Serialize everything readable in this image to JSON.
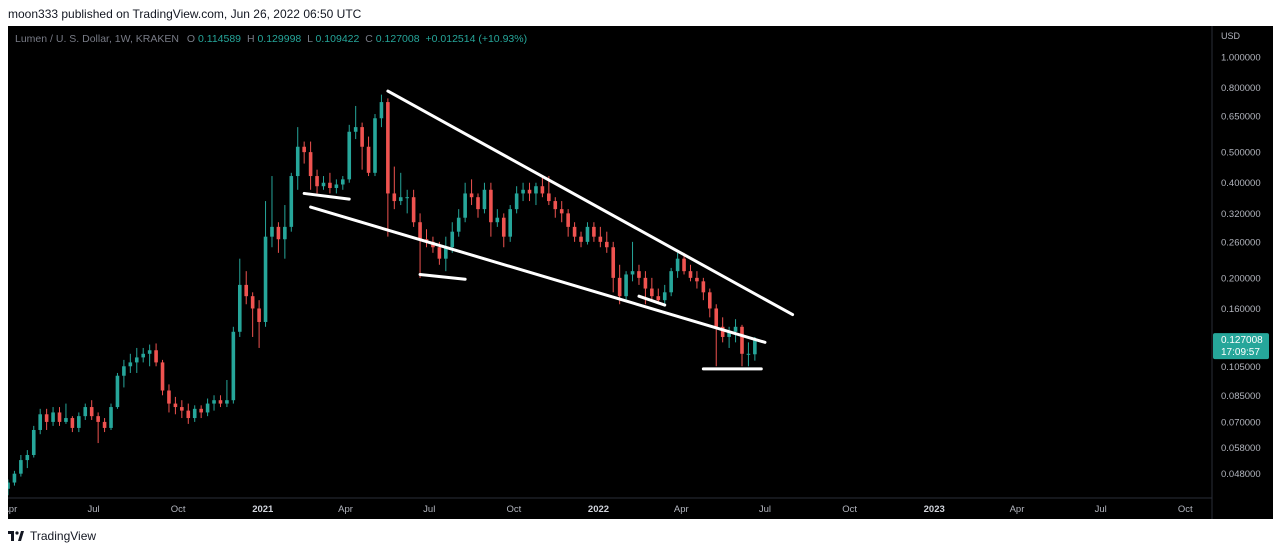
{
  "header": {
    "publisher": "moon333 published on TradingView.com, Jun 26, 2022 06:50 UTC"
  },
  "legend": {
    "symbol": "Lumen / U. S. Dollar, 1W, KRAKEN",
    "o_label": "O",
    "o_value": "0.114589",
    "h_label": "H",
    "h_value": "0.129998",
    "l_label": "L",
    "l_value": "0.109422",
    "c_label": "C",
    "c_value": "0.127008",
    "change": "+0.012514 (+10.93%)"
  },
  "price_axis": {
    "currency": "USD",
    "ticks": [
      "1.000000",
      "0.800000",
      "0.650000",
      "0.500000",
      "0.400000",
      "0.320000",
      "0.260000",
      "0.200000",
      "0.160000",
      "0.105000",
      "0.085000",
      "0.070000",
      "0.058000",
      "0.048000"
    ],
    "last_price": "0.127008",
    "countdown": "17:09:57"
  },
  "time_axis": {
    "ticks": [
      "Apr",
      "Jul",
      "Oct",
      "2021",
      "Apr",
      "Jul",
      "Oct",
      "2022",
      "Apr",
      "Jul",
      "Oct",
      "2023",
      "Apr",
      "Jul",
      "Oct"
    ]
  },
  "footer": {
    "brand": "TradingView"
  },
  "colors": {
    "up": "#26a69a",
    "down": "#ef5350",
    "background": "#000000",
    "trendline": "#ffffff",
    "price_badge": "#26a69a"
  },
  "chart_data": {
    "type": "candlestick",
    "symbol": "XLM/USD",
    "interval": "1W",
    "exchange": "KRAKEN",
    "y_scale": "log",
    "ylim": [
      0.042,
      1.2
    ],
    "xlim": [
      "2020-03-30",
      "2023-10-30"
    ],
    "grid": false,
    "candles": [
      {
        "d": "2020-03-30",
        "o": 0.043,
        "h": 0.046,
        "l": 0.041,
        "c": 0.045
      },
      {
        "d": "2020-04-06",
        "o": 0.045,
        "h": 0.049,
        "l": 0.044,
        "c": 0.048
      },
      {
        "d": "2020-04-13",
        "o": 0.048,
        "h": 0.055,
        "l": 0.047,
        "c": 0.053
      },
      {
        "d": "2020-04-20",
        "o": 0.053,
        "h": 0.057,
        "l": 0.05,
        "c": 0.055
      },
      {
        "d": "2020-04-27",
        "o": 0.055,
        "h": 0.068,
        "l": 0.054,
        "c": 0.066
      },
      {
        "d": "2020-05-04",
        "o": 0.066,
        "h": 0.077,
        "l": 0.064,
        "c": 0.074
      },
      {
        "d": "2020-05-11",
        "o": 0.074,
        "h": 0.077,
        "l": 0.066,
        "c": 0.07
      },
      {
        "d": "2020-05-18",
        "o": 0.07,
        "h": 0.078,
        "l": 0.068,
        "c": 0.075
      },
      {
        "d": "2020-05-25",
        "o": 0.075,
        "h": 0.078,
        "l": 0.068,
        "c": 0.07
      },
      {
        "d": "2020-06-01",
        "o": 0.07,
        "h": 0.08,
        "l": 0.069,
        "c": 0.072
      },
      {
        "d": "2020-06-08",
        "o": 0.072,
        "h": 0.073,
        "l": 0.065,
        "c": 0.067
      },
      {
        "d": "2020-06-15",
        "o": 0.067,
        "h": 0.075,
        "l": 0.065,
        "c": 0.073
      },
      {
        "d": "2020-06-22",
        "o": 0.073,
        "h": 0.08,
        "l": 0.071,
        "c": 0.078
      },
      {
        "d": "2020-06-29",
        "o": 0.078,
        "h": 0.082,
        "l": 0.071,
        "c": 0.073
      },
      {
        "d": "2020-07-06",
        "o": 0.073,
        "h": 0.075,
        "l": 0.06,
        "c": 0.07
      },
      {
        "d": "2020-07-13",
        "o": 0.07,
        "h": 0.072,
        "l": 0.065,
        "c": 0.067
      },
      {
        "d": "2020-07-20",
        "o": 0.067,
        "h": 0.08,
        "l": 0.066,
        "c": 0.078
      },
      {
        "d": "2020-07-27",
        "o": 0.078,
        "h": 0.1,
        "l": 0.077,
        "c": 0.098
      },
      {
        "d": "2020-08-03",
        "o": 0.098,
        "h": 0.11,
        "l": 0.09,
        "c": 0.105
      },
      {
        "d": "2020-08-10",
        "o": 0.105,
        "h": 0.115,
        "l": 0.1,
        "c": 0.108
      },
      {
        "d": "2020-08-17",
        "o": 0.108,
        "h": 0.12,
        "l": 0.1,
        "c": 0.112
      },
      {
        "d": "2020-08-24",
        "o": 0.112,
        "h": 0.12,
        "l": 0.108,
        "c": 0.115
      },
      {
        "d": "2020-08-31",
        "o": 0.115,
        "h": 0.123,
        "l": 0.105,
        "c": 0.118
      },
      {
        "d": "2020-09-07",
        "o": 0.118,
        "h": 0.124,
        "l": 0.105,
        "c": 0.108
      },
      {
        "d": "2020-09-14",
        "o": 0.108,
        "h": 0.11,
        "l": 0.085,
        "c": 0.088
      },
      {
        "d": "2020-09-21",
        "o": 0.088,
        "h": 0.092,
        "l": 0.075,
        "c": 0.08
      },
      {
        "d": "2020-09-28",
        "o": 0.08,
        "h": 0.084,
        "l": 0.074,
        "c": 0.078
      },
      {
        "d": "2020-10-05",
        "o": 0.078,
        "h": 0.082,
        "l": 0.072,
        "c": 0.076
      },
      {
        "d": "2020-10-12",
        "o": 0.076,
        "h": 0.08,
        "l": 0.069,
        "c": 0.072
      },
      {
        "d": "2020-10-19",
        "o": 0.072,
        "h": 0.079,
        "l": 0.07,
        "c": 0.077
      },
      {
        "d": "2020-10-26",
        "o": 0.077,
        "h": 0.079,
        "l": 0.072,
        "c": 0.075
      },
      {
        "d": "2020-11-02",
        "o": 0.075,
        "h": 0.083,
        "l": 0.073,
        "c": 0.08
      },
      {
        "d": "2020-11-09",
        "o": 0.08,
        "h": 0.085,
        "l": 0.076,
        "c": 0.082
      },
      {
        "d": "2020-11-16",
        "o": 0.082,
        "h": 0.085,
        "l": 0.078,
        "c": 0.08
      },
      {
        "d": "2020-11-23",
        "o": 0.08,
        "h": 0.095,
        "l": 0.078,
        "c": 0.082
      },
      {
        "d": "2020-11-30",
        "o": 0.082,
        "h": 0.14,
        "l": 0.08,
        "c": 0.135
      },
      {
        "d": "2020-12-07",
        "o": 0.135,
        "h": 0.23,
        "l": 0.13,
        "c": 0.19
      },
      {
        "d": "2020-12-14",
        "o": 0.19,
        "h": 0.21,
        "l": 0.165,
        "c": 0.175
      },
      {
        "d": "2020-12-21",
        "o": 0.175,
        "h": 0.18,
        "l": 0.13,
        "c": 0.16
      },
      {
        "d": "2020-12-28",
        "o": 0.16,
        "h": 0.17,
        "l": 0.12,
        "c": 0.145
      },
      {
        "d": "2021-01-04",
        "o": 0.145,
        "h": 0.35,
        "l": 0.14,
        "c": 0.27
      },
      {
        "d": "2021-01-11",
        "o": 0.27,
        "h": 0.42,
        "l": 0.25,
        "c": 0.29
      },
      {
        "d": "2021-01-18",
        "o": 0.29,
        "h": 0.3,
        "l": 0.24,
        "c": 0.265
      },
      {
        "d": "2021-01-25",
        "o": 0.265,
        "h": 0.34,
        "l": 0.23,
        "c": 0.29
      },
      {
        "d": "2021-02-01",
        "o": 0.29,
        "h": 0.43,
        "l": 0.28,
        "c": 0.42
      },
      {
        "d": "2021-02-08",
        "o": 0.42,
        "h": 0.6,
        "l": 0.38,
        "c": 0.52
      },
      {
        "d": "2021-02-15",
        "o": 0.52,
        "h": 0.54,
        "l": 0.46,
        "c": 0.5
      },
      {
        "d": "2021-02-22",
        "o": 0.5,
        "h": 0.54,
        "l": 0.38,
        "c": 0.42
      },
      {
        "d": "2021-03-01",
        "o": 0.42,
        "h": 0.44,
        "l": 0.37,
        "c": 0.39
      },
      {
        "d": "2021-03-08",
        "o": 0.39,
        "h": 0.42,
        "l": 0.38,
        "c": 0.4
      },
      {
        "d": "2021-03-15",
        "o": 0.4,
        "h": 0.43,
        "l": 0.37,
        "c": 0.385
      },
      {
        "d": "2021-03-22",
        "o": 0.385,
        "h": 0.41,
        "l": 0.37,
        "c": 0.395
      },
      {
        "d": "2021-03-29",
        "o": 0.395,
        "h": 0.42,
        "l": 0.38,
        "c": 0.41
      },
      {
        "d": "2021-04-05",
        "o": 0.41,
        "h": 0.61,
        "l": 0.4,
        "c": 0.58
      },
      {
        "d": "2021-04-12",
        "o": 0.58,
        "h": 0.7,
        "l": 0.55,
        "c": 0.6
      },
      {
        "d": "2021-04-19",
        "o": 0.6,
        "h": 0.62,
        "l": 0.44,
        "c": 0.52
      },
      {
        "d": "2021-04-26",
        "o": 0.52,
        "h": 0.56,
        "l": 0.42,
        "c": 0.43
      },
      {
        "d": "2021-05-03",
        "o": 0.43,
        "h": 0.66,
        "l": 0.42,
        "c": 0.64
      },
      {
        "d": "2021-05-10",
        "o": 0.64,
        "h": 0.76,
        "l": 0.6,
        "c": 0.72
      },
      {
        "d": "2021-05-17",
        "o": 0.72,
        "h": 0.74,
        "l": 0.27,
        "c": 0.37
      },
      {
        "d": "2021-05-24",
        "o": 0.37,
        "h": 0.45,
        "l": 0.33,
        "c": 0.35
      },
      {
        "d": "2021-05-31",
        "o": 0.35,
        "h": 0.43,
        "l": 0.34,
        "c": 0.36
      },
      {
        "d": "2021-06-07",
        "o": 0.36,
        "h": 0.38,
        "l": 0.32,
        "c": 0.36
      },
      {
        "d": "2021-06-14",
        "o": 0.36,
        "h": 0.38,
        "l": 0.29,
        "c": 0.3
      },
      {
        "d": "2021-06-21",
        "o": 0.3,
        "h": 0.32,
        "l": 0.2,
        "c": 0.265
      },
      {
        "d": "2021-06-28",
        "o": 0.265,
        "h": 0.285,
        "l": 0.25,
        "c": 0.26
      },
      {
        "d": "2021-07-05",
        "o": 0.26,
        "h": 0.27,
        "l": 0.24,
        "c": 0.25
      },
      {
        "d": "2021-07-12",
        "o": 0.25,
        "h": 0.26,
        "l": 0.22,
        "c": 0.23
      },
      {
        "d": "2021-07-19",
        "o": 0.23,
        "h": 0.27,
        "l": 0.21,
        "c": 0.25
      },
      {
        "d": "2021-07-26",
        "o": 0.25,
        "h": 0.3,
        "l": 0.24,
        "c": 0.28
      },
      {
        "d": "2021-08-02",
        "o": 0.28,
        "h": 0.33,
        "l": 0.27,
        "c": 0.31
      },
      {
        "d": "2021-08-09",
        "o": 0.31,
        "h": 0.4,
        "l": 0.3,
        "c": 0.37
      },
      {
        "d": "2021-08-16",
        "o": 0.37,
        "h": 0.41,
        "l": 0.34,
        "c": 0.36
      },
      {
        "d": "2021-08-23",
        "o": 0.36,
        "h": 0.37,
        "l": 0.31,
        "c": 0.33
      },
      {
        "d": "2021-08-30",
        "o": 0.33,
        "h": 0.4,
        "l": 0.32,
        "c": 0.38
      },
      {
        "d": "2021-09-06",
        "o": 0.38,
        "h": 0.4,
        "l": 0.27,
        "c": 0.3
      },
      {
        "d": "2021-09-13",
        "o": 0.3,
        "h": 0.33,
        "l": 0.29,
        "c": 0.31
      },
      {
        "d": "2021-09-20",
        "o": 0.31,
        "h": 0.32,
        "l": 0.25,
        "c": 0.27
      },
      {
        "d": "2021-09-27",
        "o": 0.27,
        "h": 0.34,
        "l": 0.26,
        "c": 0.33
      },
      {
        "d": "2021-10-04",
        "o": 0.33,
        "h": 0.39,
        "l": 0.32,
        "c": 0.37
      },
      {
        "d": "2021-10-11",
        "o": 0.37,
        "h": 0.4,
        "l": 0.35,
        "c": 0.38
      },
      {
        "d": "2021-10-18",
        "o": 0.38,
        "h": 0.4,
        "l": 0.35,
        "c": 0.37
      },
      {
        "d": "2021-10-25",
        "o": 0.37,
        "h": 0.4,
        "l": 0.34,
        "c": 0.39
      },
      {
        "d": "2021-11-01",
        "o": 0.39,
        "h": 0.42,
        "l": 0.36,
        "c": 0.37
      },
      {
        "d": "2021-11-08",
        "o": 0.37,
        "h": 0.42,
        "l": 0.34,
        "c": 0.35
      },
      {
        "d": "2021-11-15",
        "o": 0.35,
        "h": 0.36,
        "l": 0.31,
        "c": 0.33
      },
      {
        "d": "2021-11-22",
        "o": 0.33,
        "h": 0.35,
        "l": 0.3,
        "c": 0.32
      },
      {
        "d": "2021-11-29",
        "o": 0.32,
        "h": 0.33,
        "l": 0.27,
        "c": 0.29
      },
      {
        "d": "2021-12-06",
        "o": 0.29,
        "h": 0.3,
        "l": 0.26,
        "c": 0.27
      },
      {
        "d": "2021-12-13",
        "o": 0.27,
        "h": 0.28,
        "l": 0.25,
        "c": 0.26
      },
      {
        "d": "2021-12-20",
        "o": 0.26,
        "h": 0.3,
        "l": 0.255,
        "c": 0.29
      },
      {
        "d": "2021-12-27",
        "o": 0.29,
        "h": 0.3,
        "l": 0.26,
        "c": 0.27
      },
      {
        "d": "2022-01-03",
        "o": 0.27,
        "h": 0.29,
        "l": 0.25,
        "c": 0.26
      },
      {
        "d": "2022-01-10",
        "o": 0.26,
        "h": 0.28,
        "l": 0.24,
        "c": 0.25
      },
      {
        "d": "2022-01-17",
        "o": 0.25,
        "h": 0.26,
        "l": 0.18,
        "c": 0.2
      },
      {
        "d": "2022-01-24",
        "o": 0.2,
        "h": 0.22,
        "l": 0.165,
        "c": 0.175
      },
      {
        "d": "2022-01-31",
        "o": 0.175,
        "h": 0.21,
        "l": 0.17,
        "c": 0.205
      },
      {
        "d": "2022-02-07",
        "o": 0.205,
        "h": 0.26,
        "l": 0.195,
        "c": 0.21
      },
      {
        "d": "2022-02-14",
        "o": 0.21,
        "h": 0.22,
        "l": 0.19,
        "c": 0.2
      },
      {
        "d": "2022-02-21",
        "o": 0.2,
        "h": 0.21,
        "l": 0.165,
        "c": 0.185
      },
      {
        "d": "2022-02-28",
        "o": 0.185,
        "h": 0.2,
        "l": 0.17,
        "c": 0.175
      },
      {
        "d": "2022-03-07",
        "o": 0.175,
        "h": 0.185,
        "l": 0.165,
        "c": 0.17
      },
      {
        "d": "2022-03-14",
        "o": 0.17,
        "h": 0.19,
        "l": 0.165,
        "c": 0.18
      },
      {
        "d": "2022-03-21",
        "o": 0.18,
        "h": 0.215,
        "l": 0.175,
        "c": 0.21
      },
      {
        "d": "2022-03-28",
        "o": 0.21,
        "h": 0.24,
        "l": 0.2,
        "c": 0.23
      },
      {
        "d": "2022-04-04",
        "o": 0.23,
        "h": 0.24,
        "l": 0.205,
        "c": 0.21
      },
      {
        "d": "2022-04-11",
        "o": 0.21,
        "h": 0.22,
        "l": 0.195,
        "c": 0.2
      },
      {
        "d": "2022-04-18",
        "o": 0.2,
        "h": 0.21,
        "l": 0.185,
        "c": 0.195
      },
      {
        "d": "2022-04-25",
        "o": 0.195,
        "h": 0.2,
        "l": 0.17,
        "c": 0.18
      },
      {
        "d": "2022-05-02",
        "o": 0.18,
        "h": 0.185,
        "l": 0.15,
        "c": 0.16
      },
      {
        "d": "2022-05-09",
        "o": 0.16,
        "h": 0.165,
        "l": 0.105,
        "c": 0.14
      },
      {
        "d": "2022-05-16",
        "o": 0.14,
        "h": 0.15,
        "l": 0.125,
        "c": 0.13
      },
      {
        "d": "2022-05-23",
        "o": 0.13,
        "h": 0.14,
        "l": 0.12,
        "c": 0.135
      },
      {
        "d": "2022-05-30",
        "o": 0.135,
        "h": 0.148,
        "l": 0.125,
        "c": 0.14
      },
      {
        "d": "2022-06-06",
        "o": 0.14,
        "h": 0.142,
        "l": 0.105,
        "c": 0.115
      },
      {
        "d": "2022-06-13",
        "o": 0.115,
        "h": 0.125,
        "l": 0.105,
        "c": 0.115
      },
      {
        "d": "2022-06-20",
        "o": 0.114589,
        "h": 0.129998,
        "l": 0.109422,
        "c": 0.127008
      }
    ],
    "drawings": [
      {
        "name": "upper-trendline",
        "p1": {
          "d": "2021-05-17",
          "v": 0.78
        },
        "p2": {
          "d": "2022-07-31",
          "v": 0.153
        }
      },
      {
        "name": "lower-trendline",
        "p1": {
          "d": "2021-02-22",
          "v": 0.335
        },
        "p2": {
          "d": "2022-07-01",
          "v": 0.125
        }
      },
      {
        "name": "support-line-1",
        "p1": {
          "d": "2021-02-15",
          "v": 0.37
        },
        "p2": {
          "d": "2021-04-05",
          "v": 0.355
        }
      },
      {
        "name": "support-line-2",
        "p1": {
          "d": "2021-06-21",
          "v": 0.205
        },
        "p2": {
          "d": "2021-08-09",
          "v": 0.198
        }
      },
      {
        "name": "support-line-3",
        "p1": {
          "d": "2022-02-14",
          "v": 0.175
        },
        "p2": {
          "d": "2022-03-14",
          "v": 0.164
        }
      },
      {
        "name": "support-line-4",
        "p1": {
          "d": "2022-04-25",
          "v": 0.103
        },
        "p2": {
          "d": "2022-06-27",
          "v": 0.103
        }
      }
    ]
  }
}
